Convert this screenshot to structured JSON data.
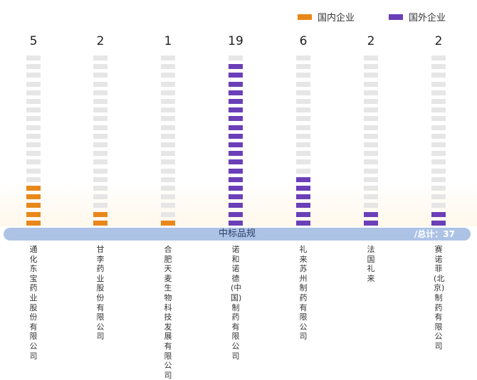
{
  "legend": {
    "domestic": "国内企业",
    "foreign": "国外企业"
  },
  "colors": {
    "domestic": "#e8881a",
    "foreign": "#6a3fb8",
    "empty": "#e6e6e6"
  },
  "band": {
    "title": "中标品规",
    "total": "/总计：37"
  },
  "chart_data": {
    "type": "bar",
    "categories": [
      "通化东宝药业股份有限公司",
      "甘李药业股份有限公司",
      "合肥天麦生物科技发展有限公司",
      "诺和诺德(中国)制药有限公司",
      "礼来苏州制药有限公司",
      "法国礼来",
      "赛诺菲(北京)制药有限公司"
    ],
    "values": [
      5,
      2,
      1,
      19,
      6,
      2,
      2
    ],
    "groups": [
      "国内企业",
      "国内企业",
      "国内企业",
      "国外企业",
      "国外企业",
      "国外企业",
      "国外企业"
    ],
    "ylim": [
      0,
      20
    ],
    "total": 37
  }
}
